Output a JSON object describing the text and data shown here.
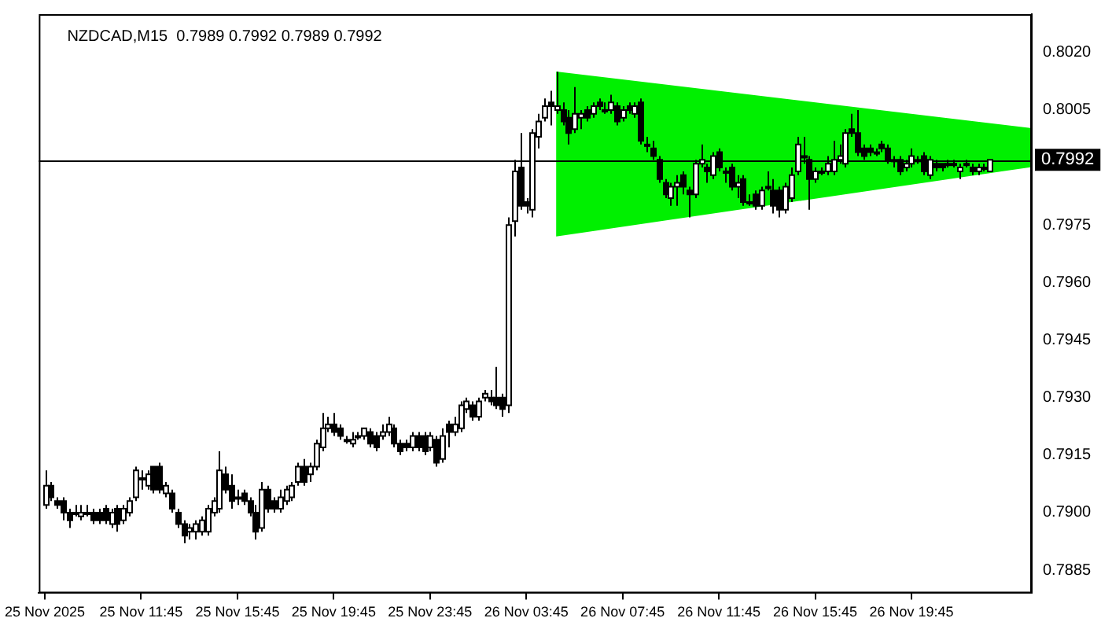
{
  "chart_data": {
    "type": "candlestick",
    "title": "NZDCAD,M15  0.7989 0.7992 0.7989 0.7992",
    "categories": [
      "25 Nov 2025",
      null,
      null,
      null,
      null,
      null,
      null,
      null,
      null,
      null,
      null,
      null,
      null,
      null,
      null,
      null,
      "25 Nov 11:45",
      null,
      null,
      null,
      null,
      null,
      null,
      null,
      null,
      null,
      null,
      null,
      null,
      null,
      null,
      null,
      "25 Nov 15:45",
      null,
      null,
      null,
      null,
      null,
      null,
      null,
      null,
      null,
      null,
      null,
      null,
      null,
      null,
      null,
      "25 Nov 19:45",
      null,
      null,
      null,
      null,
      null,
      null,
      null,
      null,
      null,
      null,
      null,
      null,
      null,
      null,
      null,
      "25 Nov 23:45",
      null,
      null,
      null,
      null,
      null,
      null,
      null,
      null,
      null,
      null,
      null,
      null,
      null,
      null,
      null,
      "26 Nov 03:45",
      null,
      null,
      null,
      null,
      null,
      null,
      null,
      null,
      null,
      null,
      null,
      null,
      null,
      null,
      null,
      "26 Nov 07:45",
      null,
      null,
      null,
      null,
      null,
      null,
      null,
      null,
      null,
      null,
      null,
      null,
      null,
      null,
      null,
      "26 Nov 11:45",
      null,
      null,
      null,
      null,
      null,
      null,
      null,
      null,
      null,
      null,
      null,
      null,
      null,
      null,
      null,
      "26 Nov 15:45",
      null,
      null,
      null,
      null,
      null,
      null,
      null,
      null,
      null,
      null,
      null,
      null,
      null,
      null,
      null,
      "26 Nov 19:45",
      null,
      null,
      null,
      null,
      null,
      null,
      null,
      null,
      null,
      null,
      null,
      null,
      null
    ],
    "ohlc": [
      [
        0.7902,
        0.7911,
        0.7901,
        0.7907
      ],
      [
        0.7907,
        0.7908,
        0.7903,
        0.7904
      ],
      [
        0.7903,
        0.7904,
        0.7901,
        0.7902
      ],
      [
        0.7903,
        0.7904,
        0.7898,
        0.79
      ],
      [
        0.79,
        0.7901,
        0.7896,
        0.7898
      ],
      [
        0.79,
        0.7902,
        0.7899,
        0.79
      ],
      [
        0.7899,
        0.7902,
        0.7898,
        0.79
      ],
      [
        0.79,
        0.7902,
        0.7899,
        0.79
      ],
      [
        0.79,
        0.7901,
        0.7897,
        0.7898
      ],
      [
        0.79,
        0.7901,
        0.7897,
        0.7898
      ],
      [
        0.7901,
        0.7902,
        0.7897,
        0.7898
      ],
      [
        0.7897,
        0.7901,
        0.7896,
        0.79
      ],
      [
        0.7901,
        0.7902,
        0.7895,
        0.7897
      ],
      [
        0.7898,
        0.7902,
        0.7897,
        0.7901
      ],
      [
        0.79,
        0.7904,
        0.7899,
        0.7903
      ],
      [
        0.7904,
        0.7912,
        0.7903,
        0.7911
      ],
      [
        0.7909,
        0.7911,
        0.7906,
        0.7909
      ],
      [
        0.7907,
        0.7911,
        0.7906,
        0.791
      ],
      [
        0.7912,
        0.7912,
        0.7905,
        0.7906
      ],
      [
        0.7912,
        0.7913,
        0.7905,
        0.7906
      ],
      [
        0.7905,
        0.7908,
        0.7904,
        0.7907
      ],
      [
        0.7905,
        0.7906,
        0.79,
        0.7901
      ],
      [
        0.79,
        0.7901,
        0.7896,
        0.7897
      ],
      [
        0.7897,
        0.7898,
        0.7892,
        0.7894
      ],
      [
        0.7895,
        0.7897,
        0.7893,
        0.7896
      ],
      [
        0.7895,
        0.7898,
        0.7893,
        0.7897
      ],
      [
        0.7895,
        0.7899,
        0.7894,
        0.7898
      ],
      [
        0.7895,
        0.7902,
        0.7894,
        0.7901
      ],
      [
        0.79,
        0.7904,
        0.7899,
        0.7903
      ],
      [
        0.7901,
        0.7916,
        0.79,
        0.7911
      ],
      [
        0.791,
        0.7912,
        0.7905,
        0.7906
      ],
      [
        0.7907,
        0.791,
        0.7901,
        0.7903
      ],
      [
        0.7904,
        0.7906,
        0.7902,
        0.7904
      ],
      [
        0.7905,
        0.7906,
        0.7902,
        0.7903
      ],
      [
        0.7903,
        0.7904,
        0.7899,
        0.79
      ],
      [
        0.79,
        0.7902,
        0.7893,
        0.7895
      ],
      [
        0.7896,
        0.7908,
        0.7895,
        0.7906
      ],
      [
        0.7906,
        0.7907,
        0.79,
        0.7901
      ],
      [
        0.7903,
        0.7904,
        0.79,
        0.7901
      ],
      [
        0.7901,
        0.7906,
        0.79,
        0.7904
      ],
      [
        0.7903,
        0.7907,
        0.7902,
        0.7906
      ],
      [
        0.7904,
        0.7908,
        0.7903,
        0.7907
      ],
      [
        0.7908,
        0.7913,
        0.7907,
        0.7912
      ],
      [
        0.7912,
        0.7914,
        0.7907,
        0.7908
      ],
      [
        0.791,
        0.7913,
        0.7908,
        0.7912
      ],
      [
        0.7912,
        0.7919,
        0.7911,
        0.7918
      ],
      [
        0.7917,
        0.7926,
        0.7916,
        0.7922
      ],
      [
        0.7922,
        0.7925,
        0.7921,
        0.7923
      ],
      [
        0.7923,
        0.7926,
        0.792,
        0.7921
      ],
      [
        0.7922,
        0.7923,
        0.7919,
        0.792
      ],
      [
        0.7919,
        0.792,
        0.7918,
        0.7919
      ],
      [
        0.7918,
        0.7921,
        0.7917,
        0.7919
      ],
      [
        0.792,
        0.7921,
        0.7919,
        0.792
      ],
      [
        0.792,
        0.7922,
        0.7919,
        0.7922
      ],
      [
        0.7921,
        0.7922,
        0.7917,
        0.7918
      ],
      [
        0.792,
        0.7921,
        0.7916,
        0.7917
      ],
      [
        0.792,
        0.7923,
        0.7919,
        0.7921
      ],
      [
        0.7921,
        0.7925,
        0.792,
        0.7923
      ],
      [
        0.7922,
        0.7923,
        0.7917,
        0.7918
      ],
      [
        0.7918,
        0.7919,
        0.7915,
        0.7916
      ],
      [
        0.7918,
        0.7919,
        0.7916,
        0.7917
      ],
      [
        0.7917,
        0.7921,
        0.7916,
        0.792
      ],
      [
        0.792,
        0.7921,
        0.7916,
        0.7917
      ],
      [
        0.792,
        0.7921,
        0.7915,
        0.7916
      ],
      [
        0.7917,
        0.7921,
        0.7916,
        0.792
      ],
      [
        0.7919,
        0.792,
        0.7912,
        0.7913
      ],
      [
        0.7914,
        0.7922,
        0.7913,
        0.792
      ],
      [
        0.7923,
        0.7924,
        0.7917,
        0.7921
      ],
      [
        0.7921,
        0.7925,
        0.792,
        0.7923
      ],
      [
        0.7922,
        0.7929,
        0.7921,
        0.7928
      ],
      [
        0.7927,
        0.793,
        0.7926,
        0.7929
      ],
      [
        0.7928,
        0.7929,
        0.7924,
        0.7925
      ],
      [
        0.7925,
        0.793,
        0.7924,
        0.7929
      ],
      [
        0.793,
        0.7932,
        0.7929,
        0.7931
      ],
      [
        0.793,
        0.7932,
        0.7928,
        0.7929
      ],
      [
        0.793,
        0.7938,
        0.7927,
        0.7928
      ],
      [
        0.793,
        0.7931,
        0.7925,
        0.7927
      ],
      [
        0.7928,
        0.7977,
        0.7926,
        0.7975
      ],
      [
        0.7976,
        0.7992,
        0.7972,
        0.7989
      ],
      [
        0.799,
        0.7999,
        0.7979,
        0.798
      ],
      [
        0.7981,
        0.7982,
        0.7978,
        0.798
      ],
      [
        0.7979,
        0.8,
        0.7977,
        0.7999
      ],
      [
        0.7998,
        0.8004,
        0.7995,
        0.8002
      ],
      [
        0.8003,
        0.8008,
        0.8002,
        0.8006
      ],
      [
        0.8007,
        0.801,
        0.8001,
        0.8006
      ],
      [
        0.8005,
        0.8015,
        0.8004,
        0.8006
      ],
      [
        0.8005,
        0.8007,
        0.8001,
        0.8002
      ],
      [
        0.8003,
        0.8005,
        0.7996,
        0.7999
      ],
      [
        0.8,
        0.8011,
        0.7999,
        0.8004
      ],
      [
        0.8003,
        0.8005,
        0.8,
        0.8004
      ],
      [
        0.8005,
        0.8006,
        0.8002,
        0.8003
      ],
      [
        0.8004,
        0.8007,
        0.8003,
        0.8006
      ],
      [
        0.8007,
        0.8008,
        0.8005,
        0.8006
      ],
      [
        0.8005,
        0.8007,
        0.8004,
        0.8005
      ],
      [
        0.8005,
        0.8009,
        0.8004,
        0.8007
      ],
      [
        0.8006,
        0.8007,
        0.8001,
        0.8002
      ],
      [
        0.8003,
        0.8006,
        0.8002,
        0.8005
      ],
      [
        0.8006,
        0.8007,
        0.8004,
        0.8005
      ],
      [
        0.8004,
        0.8007,
        0.8003,
        0.8006
      ],
      [
        0.8007,
        0.8008,
        0.7996,
        0.7997
      ],
      [
        0.7996,
        0.7998,
        0.7994,
        0.7996
      ],
      [
        0.7995,
        0.7997,
        0.7992,
        0.7993
      ],
      [
        0.7992,
        0.7993,
        0.7986,
        0.7987
      ],
      [
        0.7986,
        0.7987,
        0.7982,
        0.7983
      ],
      [
        0.7982,
        0.7986,
        0.798,
        0.7985
      ],
      [
        0.7985,
        0.7988,
        0.798,
        0.7986
      ],
      [
        0.7988,
        0.7989,
        0.7983,
        0.7985
      ],
      [
        0.7984,
        0.7985,
        0.7977,
        0.7983
      ],
      [
        0.7983,
        0.7992,
        0.7982,
        0.7991
      ],
      [
        0.7991,
        0.7996,
        0.799,
        0.7992
      ],
      [
        0.799,
        0.7991,
        0.7986,
        0.7989
      ],
      [
        0.7988,
        0.7994,
        0.7987,
        0.7993
      ],
      [
        0.7994,
        0.7995,
        0.7989,
        0.799
      ],
      [
        0.7989,
        0.799,
        0.7986,
        0.7989
      ],
      [
        0.799,
        0.7991,
        0.7984,
        0.7985
      ],
      [
        0.7985,
        0.7988,
        0.7982,
        0.7986
      ],
      [
        0.7987,
        0.7988,
        0.798,
        0.7981
      ],
      [
        0.7981,
        0.7983,
        0.798,
        0.7981
      ],
      [
        0.7983,
        0.7984,
        0.7979,
        0.798
      ],
      [
        0.798,
        0.7985,
        0.7979,
        0.7984
      ],
      [
        0.7985,
        0.7989,
        0.7984,
        0.7985
      ],
      [
        0.7984,
        0.7987,
        0.7978,
        0.798
      ],
      [
        0.7984,
        0.7985,
        0.7977,
        0.7979
      ],
      [
        0.7979,
        0.7986,
        0.7978,
        0.7985
      ],
      [
        0.7982,
        0.799,
        0.7981,
        0.7988
      ],
      [
        0.7989,
        0.7998,
        0.7988,
        0.7996
      ],
      [
        0.7993,
        0.7998,
        0.7991,
        0.7993
      ],
      [
        0.7992,
        0.7993,
        0.7979,
        0.7987
      ],
      [
        0.7987,
        0.799,
        0.7986,
        0.7989
      ],
      [
        0.7989,
        0.799,
        0.7988,
        0.7989
      ],
      [
        0.7989,
        0.7993,
        0.7988,
        0.7991
      ],
      [
        0.7989,
        0.7997,
        0.7988,
        0.7992
      ],
      [
        0.7992,
        0.7996,
        0.7991,
        0.7993
      ],
      [
        0.7991,
        0.8,
        0.799,
        0.7999
      ],
      [
        0.8,
        0.8004,
        0.7998,
        0.7999
      ],
      [
        0.7999,
        0.8005,
        0.7993,
        0.7994
      ],
      [
        0.7995,
        0.7996,
        0.7992,
        0.7993
      ],
      [
        0.7995,
        0.7996,
        0.7993,
        0.7994
      ],
      [
        0.7994,
        0.7995,
        0.7993,
        0.7994
      ],
      [
        0.7996,
        0.7997,
        0.7994,
        0.7995
      ],
      [
        0.7995,
        0.7996,
        0.7991,
        0.7992
      ],
      [
        0.7992,
        0.7993,
        0.799,
        0.7992
      ],
      [
        0.7992,
        0.7993,
        0.7988,
        0.7989
      ],
      [
        0.799,
        0.7992,
        0.7989,
        0.7991
      ],
      [
        0.7991,
        0.7995,
        0.799,
        0.7993
      ],
      [
        0.7992,
        0.7993,
        0.7991,
        0.7992
      ],
      [
        0.7993,
        0.7994,
        0.7988,
        0.7989
      ],
      [
        0.7988,
        0.7993,
        0.7987,
        0.7992
      ],
      [
        0.7991,
        0.7992,
        0.7989,
        0.799
      ],
      [
        0.7991,
        0.7991,
        0.7989,
        0.799
      ],
      [
        0.7991,
        0.7992,
        0.799,
        0.7991
      ],
      [
        0.7991,
        0.7992,
        0.799,
        0.7991
      ],
      [
        0.7989,
        0.7991,
        0.7987,
        0.799
      ],
      [
        0.7991,
        0.7992,
        0.799,
        0.7991
      ],
      [
        0.799,
        0.7991,
        0.7988,
        0.7989
      ],
      [
        0.7989,
        0.7991,
        0.7988,
        0.799
      ],
      [
        0.799,
        0.7991,
        0.7989,
        0.799
      ],
      [
        0.7989,
        0.7992,
        0.7989,
        0.7992
      ]
    ],
    "ylim": [
      0.7879,
      0.803
    ],
    "yticks": [
      {
        "value": 0.802,
        "label": "0.8020"
      },
      0.8005,
      0.7975,
      {
        "value": 0.796,
        "label": "0.7960"
      },
      0.7945,
      {
        "value": 0.793,
        "label": "0.7930"
      },
      0.7915,
      {
        "value": 0.79,
        "label": "0.7900"
      },
      0.7885
    ],
    "ref_lines": [
      {
        "axis": "y",
        "value": 0.7992,
        "label": "0.7992"
      }
    ]
  }
}
